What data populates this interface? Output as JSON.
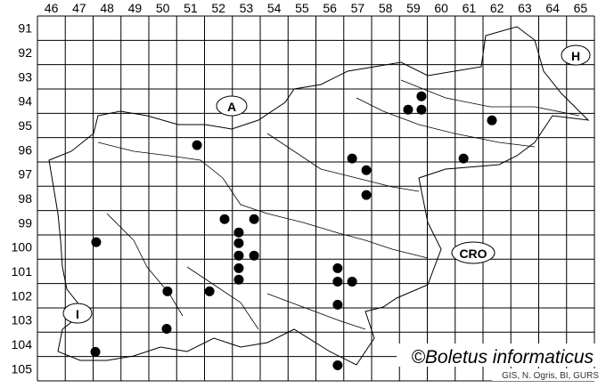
{
  "map": {
    "col_labels": [
      "46",
      "47",
      "48",
      "49",
      "50",
      "51",
      "52",
      "53",
      "54",
      "55",
      "56",
      "57",
      "58",
      "59",
      "60",
      "61",
      "62",
      "63",
      "64",
      "65"
    ],
    "row_labels": [
      "91",
      "92",
      "93",
      "94",
      "95",
      "96",
      "97",
      "98",
      "99",
      "100",
      "101",
      "102",
      "103",
      "104",
      "105"
    ],
    "country_labels": {
      "austria": "A",
      "hungary": "H",
      "croatia": "CRO",
      "italy": "I"
    },
    "watermark": "©Boletus informaticus",
    "source": "GIS, N. Ogris, BI, GURS",
    "dot_color": "#000000",
    "records": [
      {
        "col": 51.73,
        "row": 96.31
      },
      {
        "col": 59.31,
        "row": 94.85
      },
      {
        "col": 59.79,
        "row": 94.3
      },
      {
        "col": 59.79,
        "row": 94.85
      },
      {
        "col": 62.32,
        "row": 95.29
      },
      {
        "col": 57.3,
        "row": 96.86
      },
      {
        "col": 57.81,
        "row": 97.34
      },
      {
        "col": 61.3,
        "row": 96.86
      },
      {
        "col": 57.81,
        "row": 98.36
      },
      {
        "col": 52.72,
        "row": 99.35
      },
      {
        "col": 53.78,
        "row": 99.35
      },
      {
        "col": 53.23,
        "row": 99.9
      },
      {
        "col": 53.23,
        "row": 100.34
      },
      {
        "col": 53.23,
        "row": 100.85
      },
      {
        "col": 53.78,
        "row": 100.85
      },
      {
        "col": 53.23,
        "row": 101.37
      },
      {
        "col": 53.23,
        "row": 101.84
      },
      {
        "col": 56.78,
        "row": 101.37
      },
      {
        "col": 56.78,
        "row": 101.92
      },
      {
        "col": 57.3,
        "row": 101.92
      },
      {
        "col": 48.11,
        "row": 100.3
      },
      {
        "col": 50.67,
        "row": 102.32
      },
      {
        "col": 52.18,
        "row": 102.32
      },
      {
        "col": 56.78,
        "row": 102.87
      },
      {
        "col": 50.64,
        "row": 103.86
      },
      {
        "col": 48.08,
        "row": 104.81
      },
      {
        "col": 56.78,
        "row": 105.36
      }
    ]
  }
}
